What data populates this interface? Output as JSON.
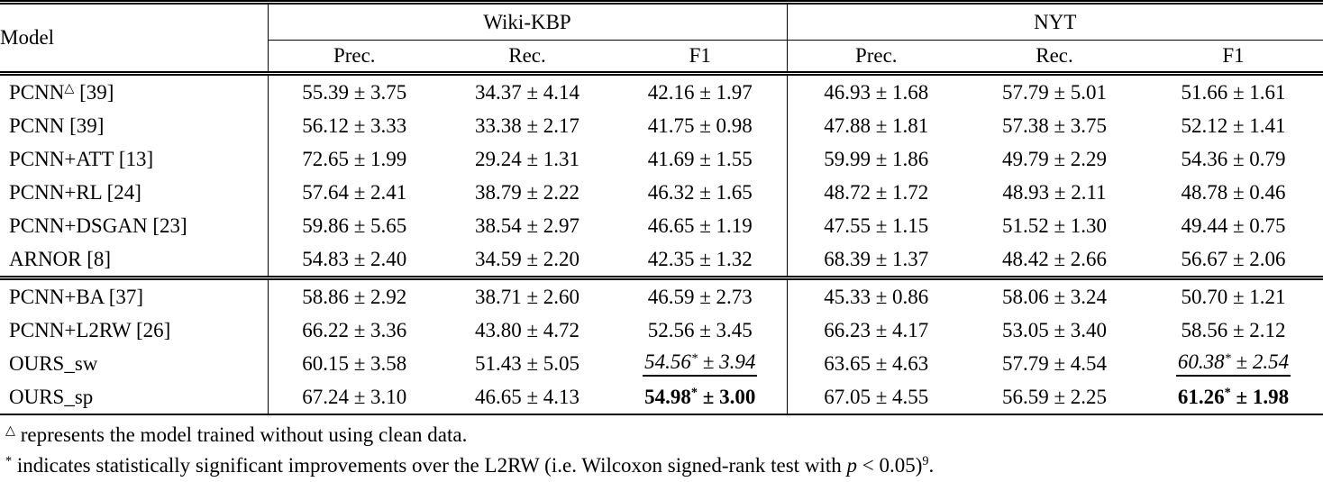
{
  "colors": {
    "text": "#000000",
    "background": "#ffffff",
    "rule": "#000000"
  },
  "table": {
    "header": {
      "model": "Model",
      "groups": [
        {
          "label": "Wiki-KBP",
          "cols": [
            "Prec.",
            "Rec.",
            "F1"
          ]
        },
        {
          "label": "NYT",
          "cols": [
            "Prec.",
            "Rec.",
            "F1"
          ]
        }
      ]
    },
    "rows": [
      {
        "model": {
          "name": "PCNN",
          "sup": "△",
          "ref": "[39]"
        },
        "cells": [
          {
            "v": "55.39",
            "e": "3.75"
          },
          {
            "v": "34.37",
            "e": "4.14"
          },
          {
            "v": "42.16",
            "e": "1.97"
          },
          {
            "v": "46.93",
            "e": "1.68"
          },
          {
            "v": "57.79",
            "e": "5.01"
          },
          {
            "v": "51.66",
            "e": "1.61"
          }
        ]
      },
      {
        "model": {
          "name": "PCNN",
          "sup": "",
          "ref": "[39]"
        },
        "cells": [
          {
            "v": "56.12",
            "e": "3.33"
          },
          {
            "v": "33.38",
            "e": "2.17"
          },
          {
            "v": "41.75",
            "e": "0.98"
          },
          {
            "v": "47.88",
            "e": "1.81"
          },
          {
            "v": "57.38",
            "e": "3.75"
          },
          {
            "v": "52.12",
            "e": "1.41"
          }
        ]
      },
      {
        "model": {
          "name": "PCNN+ATT",
          "sup": "",
          "ref": "[13]"
        },
        "cells": [
          {
            "v": "72.65",
            "e": "1.99"
          },
          {
            "v": "29.24",
            "e": "1.31"
          },
          {
            "v": "41.69",
            "e": "1.55"
          },
          {
            "v": "59.99",
            "e": "1.86"
          },
          {
            "v": "49.79",
            "e": "2.29"
          },
          {
            "v": "54.36",
            "e": "0.79"
          }
        ]
      },
      {
        "model": {
          "name": "PCNN+RL",
          "sup": "",
          "ref": "[24]"
        },
        "cells": [
          {
            "v": "57.64",
            "e": "2.41"
          },
          {
            "v": "38.79",
            "e": "2.22"
          },
          {
            "v": "46.32",
            "e": "1.65"
          },
          {
            "v": "48.72",
            "e": "1.72"
          },
          {
            "v": "48.93",
            "e": "2.11"
          },
          {
            "v": "48.78",
            "e": "0.46"
          }
        ]
      },
      {
        "model": {
          "name": "PCNN+DSGAN",
          "sup": "",
          "ref": "[23]"
        },
        "cells": [
          {
            "v": "59.86",
            "e": "5.65"
          },
          {
            "v": "38.54",
            "e": "2.97"
          },
          {
            "v": "46.65",
            "e": "1.19"
          },
          {
            "v": "47.55",
            "e": "1.15"
          },
          {
            "v": "51.52",
            "e": "1.30"
          },
          {
            "v": "49.44",
            "e": "0.75"
          }
        ]
      },
      {
        "model": {
          "name": "ARNOR",
          "sup": "",
          "ref": "[8]"
        },
        "cells": [
          {
            "v": "54.83",
            "e": "2.40"
          },
          {
            "v": "34.59",
            "e": "2.20"
          },
          {
            "v": "42.35",
            "e": "1.32"
          },
          {
            "v": "68.39",
            "e": "1.37"
          },
          {
            "v": "48.42",
            "e": "2.66"
          },
          {
            "v": "56.67",
            "e": "2.06"
          }
        ]
      },
      {
        "model": {
          "name": "PCNN+BA",
          "sup": "",
          "ref": "[37]"
        },
        "group_start": true,
        "cells": [
          {
            "v": "58.86",
            "e": "2.92"
          },
          {
            "v": "38.71",
            "e": "2.60"
          },
          {
            "v": "46.59",
            "e": "2.73"
          },
          {
            "v": "45.33",
            "e": "0.86"
          },
          {
            "v": "58.06",
            "e": "3.24"
          },
          {
            "v": "50.70",
            "e": "1.21"
          }
        ]
      },
      {
        "model": {
          "name": "PCNN+L2RW",
          "sup": "",
          "ref": "[26]"
        },
        "cells": [
          {
            "v": "66.22",
            "e": "3.36"
          },
          {
            "v": "43.80",
            "e": "4.72"
          },
          {
            "v": "52.56",
            "e": "3.45"
          },
          {
            "v": "66.23",
            "e": "4.17"
          },
          {
            "v": "53.05",
            "e": "3.40"
          },
          {
            "v": "58.56",
            "e": "2.12"
          }
        ]
      },
      {
        "model": {
          "name": "OURS_sw",
          "sup": "",
          "ref": ""
        },
        "cells": [
          {
            "v": "60.15",
            "e": "3.58"
          },
          {
            "v": "51.43",
            "e": "5.05"
          },
          {
            "v": "54.56",
            "e": "3.94",
            "star": true,
            "em": "ul"
          },
          {
            "v": "63.65",
            "e": "4.63"
          },
          {
            "v": "57.79",
            "e": "4.54"
          },
          {
            "v": "60.38",
            "e": "2.54",
            "star": true,
            "em": "ul"
          }
        ]
      },
      {
        "model": {
          "name": "OURS_sp",
          "sup": "",
          "ref": ""
        },
        "cells": [
          {
            "v": "67.24",
            "e": "3.10"
          },
          {
            "v": "46.65",
            "e": "4.13"
          },
          {
            "v": "54.98",
            "e": "3.00",
            "star": true,
            "em": "b"
          },
          {
            "v": "67.05",
            "e": "4.55"
          },
          {
            "v": "56.59",
            "e": "2.25"
          },
          {
            "v": "61.26",
            "e": "1.98",
            "star": true,
            "em": "b"
          }
        ]
      }
    ],
    "plus_minus": "±"
  },
  "footnotes": [
    {
      "parts": [
        {
          "t": "△",
          "s": "sup"
        },
        {
          "t": " represents the model trained without using clean data.",
          "s": ""
        }
      ]
    },
    {
      "parts": [
        {
          "t": "*",
          "s": "sup"
        },
        {
          "t": " indicates statistically significant improvements over the L2RW (i.e. Wilcoxon signed-rank test with ",
          "s": ""
        },
        {
          "t": "p",
          "s": "i"
        },
        {
          "t": " < 0.05)",
          "s": ""
        },
        {
          "t": "9",
          "s": "sup"
        },
        {
          "t": ".",
          "s": ""
        }
      ]
    }
  ]
}
